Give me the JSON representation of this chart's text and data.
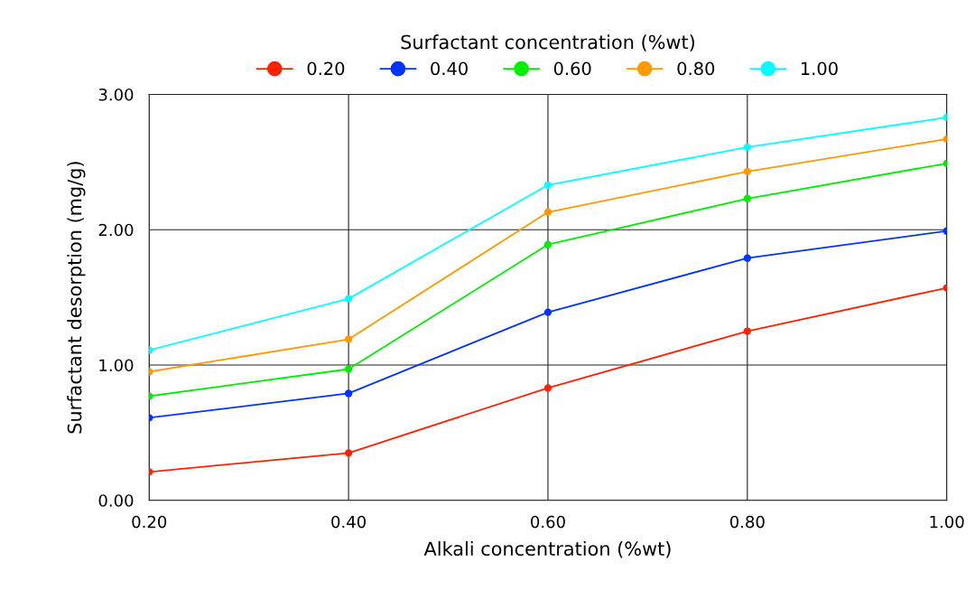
{
  "chart_data": {
    "type": "line",
    "xlabel": "Alkali concentration (%wt)",
    "ylabel": "Surfactant desorption (mg/g)",
    "legend_title": "Surfactant concentration (%wt)",
    "x": [
      0.2,
      0.4,
      0.6,
      0.8,
      1.0
    ],
    "series": [
      {
        "name": "0.20",
        "color": "#ff2200",
        "values": [
          0.21,
          0.35,
          0.83,
          1.25,
          1.57
        ]
      },
      {
        "name": "0.40",
        "color": "#0033ff",
        "values": [
          0.61,
          0.79,
          1.39,
          1.79,
          1.99
        ]
      },
      {
        "name": "0.60",
        "color": "#00ee00",
        "values": [
          0.77,
          0.97,
          1.89,
          2.23,
          2.49
        ]
      },
      {
        "name": "0.80",
        "color": "#ff9900",
        "values": [
          0.95,
          1.19,
          2.13,
          2.43,
          2.67
        ]
      },
      {
        "name": "1.00",
        "color": "#00ffff",
        "values": [
          1.11,
          1.49,
          2.33,
          2.61,
          2.83
        ]
      }
    ],
    "xlim": [
      0.2,
      1.0
    ],
    "xticks": [
      {
        "value": 0.2,
        "label": "0.20"
      },
      {
        "value": 0.4,
        "label": "0.40"
      },
      {
        "value": 0.6,
        "label": "0.60"
      },
      {
        "value": 0.8,
        "label": "0.80"
      },
      {
        "value": 1.0,
        "label": "1.00"
      }
    ],
    "ylim": [
      0,
      3
    ],
    "yticks": [
      {
        "value": 0,
        "label": "0.00"
      },
      {
        "value": 1,
        "label": "1.00"
      },
      {
        "value": 2,
        "label": "2.00"
      },
      {
        "value": 3,
        "label": "3.00"
      }
    ],
    "grid": true,
    "legend": "top",
    "marker": "circle",
    "line_style": "solid"
  }
}
